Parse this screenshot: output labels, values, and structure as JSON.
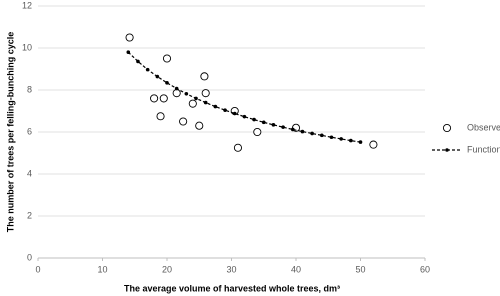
{
  "chart_data": {
    "type": "scatter",
    "x_label": "The average volume of harvested whole trees, dm³",
    "y_label": "The number of trees per felling-bunching cycle",
    "xlim": [
      0,
      60
    ],
    "xticks": [
      0,
      10,
      20,
      30,
      40,
      50,
      60
    ],
    "ylim": [
      0,
      12
    ],
    "yticks": [
      0,
      2,
      4,
      6,
      8,
      10,
      12
    ],
    "grid": true,
    "legend": "right",
    "series": [
      {
        "name": "Observed",
        "color": "#000000",
        "line": false,
        "marker": "open-circle",
        "x": [
          14.2,
          20,
          25.8,
          26,
          18,
          19.5,
          21.5,
          24,
          19,
          22.5,
          25,
          30.5,
          31,
          34,
          40,
          52
        ],
        "values": [
          10.5,
          9.5,
          8.65,
          7.85,
          7.6,
          7.6,
          7.85,
          7.35,
          6.75,
          6.5,
          6.3,
          7.0,
          5.25,
          6.0,
          6.2,
          5.4
        ]
      },
      {
        "name": "Function",
        "color": "#000000",
        "line": true,
        "marker": "filled-dot",
        "x": [
          14,
          15.5,
          17,
          18.5,
          20,
          21.5,
          23,
          24.5,
          26,
          27.5,
          29,
          30.5,
          32,
          33.5,
          35,
          36.5,
          38,
          39.5,
          41,
          42.5,
          44,
          45.5,
          47,
          48.5,
          50
        ],
        "values": [
          9.8,
          9.36,
          8.97,
          8.64,
          8.34,
          8.07,
          7.82,
          7.6,
          7.4,
          7.21,
          7.04,
          6.88,
          6.73,
          6.59,
          6.46,
          6.34,
          6.23,
          6.12,
          6.02,
          5.93,
          5.84,
          5.75,
          5.67,
          5.59,
          5.52
        ]
      }
    ]
  }
}
